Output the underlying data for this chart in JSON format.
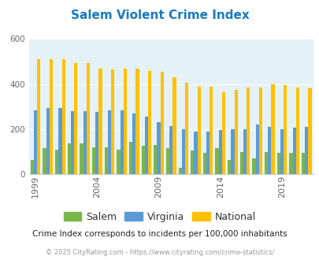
{
  "title": "Salem Violent Crime Index",
  "years": [
    1999,
    2000,
    2001,
    2002,
    2003,
    2004,
    2005,
    2006,
    2007,
    2008,
    2009,
    2010,
    2011,
    2012,
    2013,
    2014,
    2015,
    2016,
    2017,
    2018,
    2019,
    2020,
    2021
  ],
  "salem": [
    65,
    115,
    110,
    135,
    135,
    120,
    120,
    110,
    145,
    125,
    130,
    115,
    30,
    105,
    95,
    115,
    65,
    100,
    70,
    100,
    95,
    95,
    95
  ],
  "virginia": [
    285,
    295,
    295,
    280,
    280,
    275,
    285,
    285,
    270,
    255,
    230,
    215,
    200,
    190,
    190,
    195,
    200,
    200,
    220,
    210,
    200,
    205,
    210
  ],
  "national": [
    510,
    510,
    510,
    495,
    495,
    470,
    465,
    470,
    470,
    460,
    455,
    430,
    405,
    390,
    390,
    365,
    375,
    385,
    385,
    400,
    395,
    385,
    380
  ],
  "salem_color": "#7ab648",
  "virginia_color": "#5b9bd5",
  "national_color": "#ffc000",
  "bg_color": "#e4f1f6",
  "ylim": [
    0,
    600
  ],
  "yticks": [
    0,
    200,
    400,
    600
  ],
  "xlabel_ticks": [
    1999,
    2004,
    2009,
    2014,
    2019
  ],
  "subtitle": "Crime Index corresponds to incidents per 100,000 inhabitants",
  "footer": "© 2025 CityRating.com - https://www.cityrating.com/crime-statistics/",
  "title_color": "#1a7abf",
  "subtitle_color": "#222222",
  "footer_color": "#999999",
  "tick_color": "#666666",
  "grid_color": "#ffffff"
}
